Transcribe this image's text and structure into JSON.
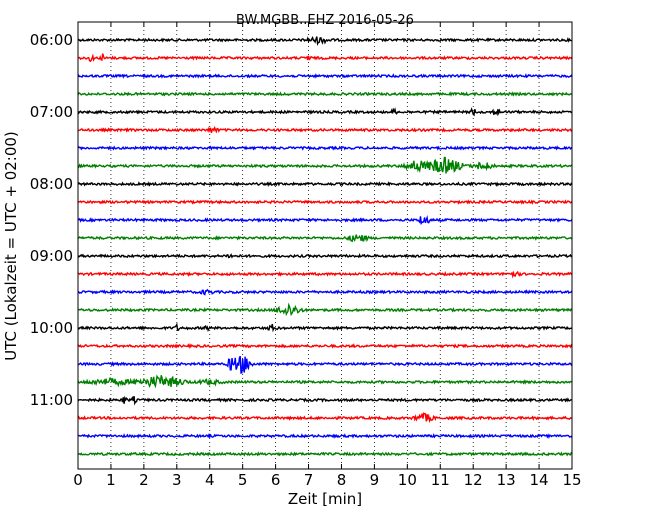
{
  "chart_data": {
    "type": "line",
    "title": "BW.MGBB..EHZ 2016-05-26",
    "xlabel": "Zeit  [min]",
    "ylabel": "UTC (Lokalzeit = UTC + 02:00)",
    "xlim": [
      0,
      15
    ],
    "x_ticks": [
      "0",
      "1",
      "2",
      "3",
      "4",
      "5",
      "6",
      "7",
      "8",
      "9",
      "10",
      "11",
      "12",
      "13",
      "14",
      "15"
    ],
    "y_ticks": [
      "06:00",
      "07:00",
      "08:00",
      "09:00",
      "10:00",
      "11:00"
    ],
    "grid": "vertical dotted",
    "colors": [
      "#000000",
      "#ff0000",
      "#0000ff",
      "#008000"
    ],
    "traces": [
      {
        "start": "06:00",
        "color": "#000000",
        "events": [
          {
            "t": 7.3,
            "amp": 3,
            "dur": 0.5
          }
        ]
      },
      {
        "start": "06:15",
        "color": "#ff0000",
        "events": [
          {
            "t": 0.4,
            "amp": 4,
            "dur": 0.1
          },
          {
            "t": 0.75,
            "amp": 4,
            "dur": 0.1
          },
          {
            "t": 7.0,
            "amp": 4,
            "dur": 0.1
          }
        ]
      },
      {
        "start": "06:30",
        "color": "#0000ff",
        "events": []
      },
      {
        "start": "06:45",
        "color": "#008000",
        "events": []
      },
      {
        "start": "07:00",
        "color": "#000000",
        "events": [
          {
            "t": 9.6,
            "amp": 3,
            "dur": 0.1
          },
          {
            "t": 12.0,
            "amp": 5,
            "dur": 0.1
          },
          {
            "t": 12.7,
            "amp": 3,
            "dur": 0.2
          }
        ]
      },
      {
        "start": "07:15",
        "color": "#ff0000",
        "events": [
          {
            "t": 4.1,
            "amp": 3,
            "dur": 0.2
          }
        ]
      },
      {
        "start": "07:30",
        "color": "#0000ff",
        "events": []
      },
      {
        "start": "07:45",
        "color": "#008000",
        "events": [
          {
            "t": 10.3,
            "amp": 6,
            "dur": 0.5
          },
          {
            "t": 11.1,
            "amp": 8,
            "dur": 0.8
          },
          {
            "t": 12.3,
            "amp": 4,
            "dur": 0.4
          }
        ]
      },
      {
        "start": "08:00",
        "color": "#000000",
        "events": []
      },
      {
        "start": "08:15",
        "color": "#ff0000",
        "events": []
      },
      {
        "start": "08:30",
        "color": "#0000ff",
        "events": [
          {
            "t": 10.5,
            "amp": 7,
            "dur": 0.2
          }
        ]
      },
      {
        "start": "08:45",
        "color": "#008000",
        "events": [
          {
            "t": 8.5,
            "amp": 4,
            "dur": 0.4
          }
        ]
      },
      {
        "start": "09:00",
        "color": "#000000",
        "events": [
          {
            "t": 4.6,
            "amp": 3,
            "dur": 0.1
          }
        ]
      },
      {
        "start": "09:15",
        "color": "#ff0000",
        "events": [
          {
            "t": 13.2,
            "amp": 2,
            "dur": 0.3
          }
        ]
      },
      {
        "start": "09:30",
        "color": "#0000ff",
        "events": [
          {
            "t": 3.9,
            "amp": 2,
            "dur": 0.3
          }
        ]
      },
      {
        "start": "09:45",
        "color": "#008000",
        "events": [
          {
            "t": 6.4,
            "amp": 6,
            "dur": 0.5
          }
        ]
      },
      {
        "start": "10:00",
        "color": "#000000",
        "events": [
          {
            "t": 3.0,
            "amp": 3,
            "dur": 0.1
          },
          {
            "t": 3.9,
            "amp": 3,
            "dur": 0.1
          },
          {
            "t": 5.9,
            "amp": 3,
            "dur": 0.2
          }
        ]
      },
      {
        "start": "10:15",
        "color": "#ff0000",
        "events": []
      },
      {
        "start": "10:30",
        "color": "#0000ff",
        "events": [
          {
            "t": 4.7,
            "amp": 10,
            "dur": 0.2
          },
          {
            "t": 5.0,
            "amp": 10,
            "dur": 0.35
          }
        ]
      },
      {
        "start": "10:45",
        "color": "#008000",
        "events": [
          {
            "t": 1.0,
            "amp": 3,
            "dur": 1.0
          },
          {
            "t": 2.5,
            "amp": 6,
            "dur": 1.0
          },
          {
            "t": 4.0,
            "amp": 2,
            "dur": 0.5
          }
        ]
      },
      {
        "start": "11:00",
        "color": "#000000",
        "events": [
          {
            "t": 1.4,
            "amp": 4,
            "dur": 0.1
          },
          {
            "t": 1.7,
            "amp": 3,
            "dur": 0.1
          }
        ]
      },
      {
        "start": "11:15",
        "color": "#ff0000",
        "events": [
          {
            "t": 10.5,
            "amp": 4,
            "dur": 0.4
          }
        ]
      },
      {
        "start": "11:30",
        "color": "#0000ff",
        "events": []
      },
      {
        "start": "11:45",
        "color": "#008000",
        "events": []
      }
    ]
  }
}
